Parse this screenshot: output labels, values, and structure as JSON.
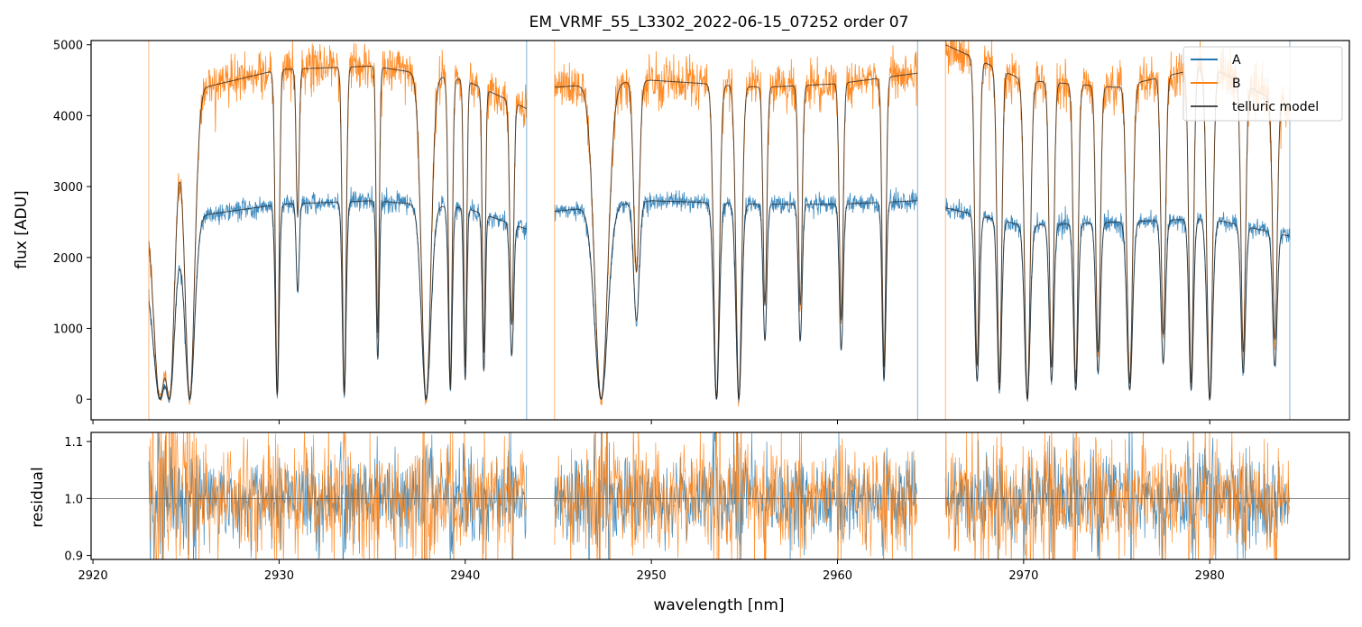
{
  "title": "EM_VRMF_55_L3302_2022-06-15_07252  order 07",
  "colors": {
    "A": "#1f77b4",
    "B": "#ff7f0e",
    "model": "#4d4d4d"
  },
  "chart_data": [
    {
      "type": "line",
      "panel": "top",
      "xlabel": "",
      "ylabel": "flux [ADU]",
      "xlim": [
        2919.9,
        2987.5
      ],
      "ylim": [
        -290,
        5060
      ],
      "yticks": [
        0,
        1000,
        2000,
        3000,
        4000,
        5000
      ],
      "yticklabels": [
        "0",
        "1000",
        "2000",
        "3000",
        "4000",
        "5000"
      ],
      "legend": {
        "location": "top-right",
        "entries": [
          {
            "label": "A",
            "color": "#1f77b4"
          },
          {
            "label": "B",
            "color": "#ff7f0e"
          },
          {
            "label": "telluric model",
            "color": "#4d4d4d"
          }
        ]
      },
      "segments": [
        [
          2923.0,
          2943.3
        ],
        [
          2944.8,
          2964.3
        ],
        [
          2965.8,
          2984.3
        ]
      ],
      "continuum": {
        "A": {
          "x": [
            2923,
            2926,
            2930,
            2935,
            2940,
            2943.3,
            2944.8,
            2950,
            2956,
            2960,
            2964.3,
            2965.8,
            2970,
            2975,
            2980,
            2984.3
          ],
          "y": [
            1800,
            2600,
            2750,
            2800,
            2700,
            2400,
            2650,
            2800,
            2750,
            2750,
            2800,
            2700,
            2450,
            2500,
            2550,
            2300
          ]
        },
        "B": {
          "x": [
            2923,
            2926,
            2930,
            2935,
            2940,
            2943.3,
            2944.8,
            2950,
            2956,
            2960,
            2964.3,
            2965.8,
            2970,
            2975,
            2980,
            2984.3
          ],
          "y": [
            2900,
            4400,
            4650,
            4700,
            4500,
            4100,
            4400,
            4500,
            4400,
            4450,
            4600,
            5000,
            4500,
            4400,
            4700,
            4100
          ]
        }
      },
      "absorption_lines": [
        {
          "center": 2923.6,
          "width": 0.35,
          "depth": 1.0
        },
        {
          "center": 2924.1,
          "width": 0.25,
          "depth": 1.0
        },
        {
          "center": 2925.2,
          "width": 0.25,
          "depth": 1.0
        },
        {
          "center": 2929.9,
          "width": 0.1,
          "depth": 0.98
        },
        {
          "center": 2931.0,
          "width": 0.08,
          "depth": 0.45
        },
        {
          "center": 2933.5,
          "width": 0.1,
          "depth": 0.98
        },
        {
          "center": 2935.3,
          "width": 0.08,
          "depth": 0.8
        },
        {
          "center": 2937.9,
          "width": 0.25,
          "depth": 1.0
        },
        {
          "center": 2939.2,
          "width": 0.1,
          "depth": 0.95
        },
        {
          "center": 2940.0,
          "width": 0.08,
          "depth": 0.9
        },
        {
          "center": 2941.0,
          "width": 0.08,
          "depth": 0.85
        },
        {
          "center": 2942.5,
          "width": 0.1,
          "depth": 0.75
        },
        {
          "center": 2947.3,
          "width": 0.35,
          "depth": 1.0
        },
        {
          "center": 2949.2,
          "width": 0.15,
          "depth": 0.6
        },
        {
          "center": 2953.5,
          "width": 0.15,
          "depth": 1.0
        },
        {
          "center": 2954.7,
          "width": 0.15,
          "depth": 1.0
        },
        {
          "center": 2956.1,
          "width": 0.1,
          "depth": 0.7
        },
        {
          "center": 2958.0,
          "width": 0.1,
          "depth": 0.7
        },
        {
          "center": 2960.2,
          "width": 0.1,
          "depth": 0.75
        },
        {
          "center": 2962.5,
          "width": 0.1,
          "depth": 0.9
        },
        {
          "center": 2967.5,
          "width": 0.12,
          "depth": 0.9
        },
        {
          "center": 2968.7,
          "width": 0.12,
          "depth": 0.95
        },
        {
          "center": 2970.2,
          "width": 0.15,
          "depth": 1.0
        },
        {
          "center": 2971.5,
          "width": 0.12,
          "depth": 0.9
        },
        {
          "center": 2972.8,
          "width": 0.12,
          "depth": 0.95
        },
        {
          "center": 2974.0,
          "width": 0.12,
          "depth": 0.85
        },
        {
          "center": 2975.7,
          "width": 0.15,
          "depth": 0.95
        },
        {
          "center": 2977.5,
          "width": 0.12,
          "depth": 0.8
        },
        {
          "center": 2979.0,
          "width": 0.12,
          "depth": 0.95
        },
        {
          "center": 2980.0,
          "width": 0.15,
          "depth": 1.0
        },
        {
          "center": 2981.8,
          "width": 0.12,
          "depth": 0.85
        },
        {
          "center": 2983.5,
          "width": 0.12,
          "depth": 0.8
        }
      ],
      "noise_sigma": {
        "A": 70,
        "B": 160
      }
    },
    {
      "type": "line",
      "panel": "bottom",
      "xlabel": "wavelength [nm]",
      "ylabel": "residual",
      "xlim": [
        2919.9,
        2987.5
      ],
      "ylim": [
        0.893,
        1.116
      ],
      "xticks": [
        2920,
        2930,
        2940,
        2950,
        2960,
        2970,
        2980
      ],
      "xticklabels": [
        "2920",
        "2930",
        "2940",
        "2950",
        "2960",
        "2970",
        "2980"
      ],
      "yticks": [
        0.9,
        1.0,
        1.1
      ],
      "yticklabels": [
        "0.9",
        "1.0",
        "1.1"
      ],
      "reference_line": 1.0,
      "segments": [
        [
          2923.0,
          2943.3
        ],
        [
          2944.8,
          2964.3
        ],
        [
          2965.8,
          2984.3
        ]
      ],
      "noise_sigma": {
        "A": 0.035,
        "B": 0.045
      }
    }
  ]
}
